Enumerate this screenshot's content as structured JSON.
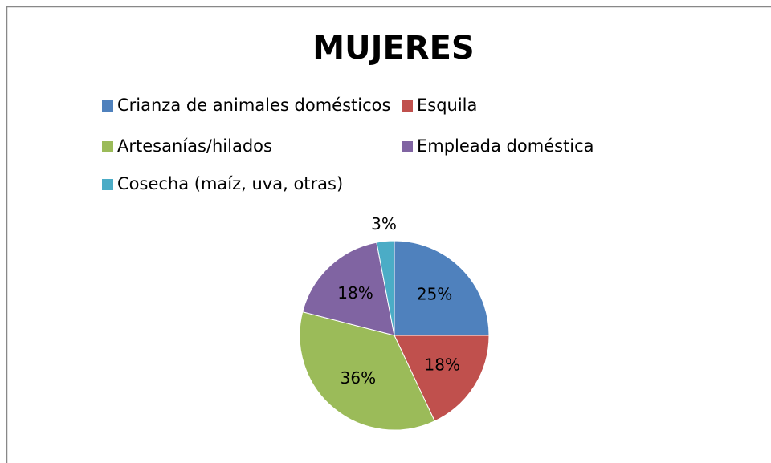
{
  "chart_data": {
    "type": "pie",
    "title": "MUJERES",
    "categories": [
      "Crianza de animales domésticos",
      "Esquila",
      "Artesanías/hilados",
      "Empleada doméstica",
      "Cosecha (maíz, uva, otras)"
    ],
    "values": [
      25,
      18,
      36,
      18,
      3
    ],
    "value_labels": [
      "25%",
      "18%",
      "36%",
      "18%",
      "3%"
    ],
    "colors": [
      "#4f81bd",
      "#c0504d",
      "#9bbb59",
      "#8064a2",
      "#4bacc6"
    ]
  }
}
